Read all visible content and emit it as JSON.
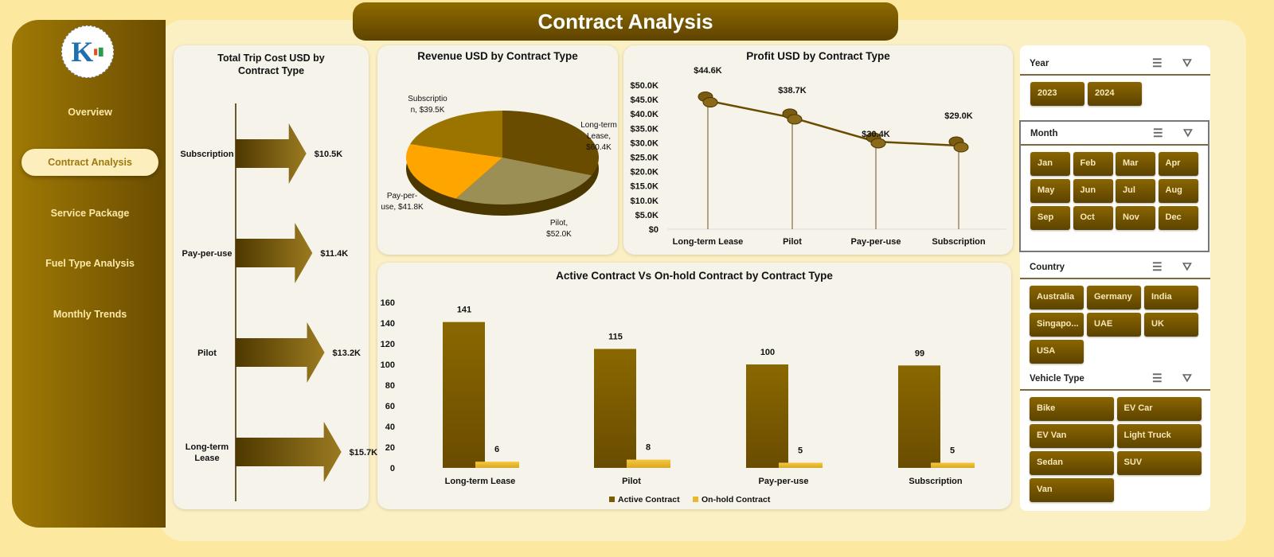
{
  "header": {
    "title": "Contract Analysis"
  },
  "sidebar": {
    "logo_text": "K",
    "items": [
      {
        "label": "Overview"
      },
      {
        "label": "Contract Analysis",
        "active": true
      },
      {
        "label": "Service Package"
      },
      {
        "label": "Fuel Type Analysis"
      },
      {
        "label": "Monthly Trends"
      }
    ]
  },
  "colors": {
    "dark_brown": "#6a4c00",
    "gold": "#9b7400",
    "khaki": "#9b8f55",
    "orange": "#ffa500",
    "onhold": "#e8b830"
  },
  "chart_data": [
    {
      "id": "trip-cost",
      "type": "bar",
      "orientation": "horizontal",
      "mark": "arrow",
      "title": "Total Trip Cost USD by Contract Type",
      "categories": [
        "Subscription",
        "Pay-per-use",
        "Pilot",
        "Long-term Lease"
      ],
      "values": [
        10.5,
        11.4,
        13.2,
        15.7
      ],
      "labels": [
        "$10.5K",
        "$11.4K",
        "$13.2K",
        "$15.7K"
      ],
      "unit": "K USD"
    },
    {
      "id": "revenue",
      "type": "pie",
      "title": "Revenue USD by Contract Type",
      "categories": [
        "Long-term Lease",
        "Pilot",
        "Pay-per-use",
        "Subscription"
      ],
      "values": [
        60.4,
        52.0,
        41.8,
        39.5
      ],
      "labels": [
        "Long-term Lease, $60.4K",
        "Pilot, $52.0K",
        "Pay-per-use, $41.8K",
        "Subscriptio n, $39.5K"
      ],
      "colors": [
        "#6a4c00",
        "#9b8f55",
        "#ffa500",
        "#9b7400"
      ]
    },
    {
      "id": "profit",
      "type": "line",
      "title": "Profit USD by Contract Type",
      "categories": [
        "Long-term Lease",
        "Pilot",
        "Pay-per-use",
        "Subscription"
      ],
      "values": [
        44.6,
        38.7,
        30.4,
        29.0
      ],
      "labels": [
        "$44.6K",
        "$38.7K",
        "$30.4K",
        "$29.0K"
      ],
      "ylim": [
        0,
        50
      ],
      "yticks": [
        "$0",
        "$5.0K",
        "$10.0K",
        "$15.0K",
        "$20.0K",
        "$25.0K",
        "$30.0K",
        "$35.0K",
        "$40.0K",
        "$45.0K",
        "$50.0K"
      ]
    },
    {
      "id": "contracts",
      "type": "bar",
      "title": "Active Contract Vs On-hold Contract by Contract Type",
      "categories": [
        "Long-term Lease",
        "Pilot",
        "Pay-per-use",
        "Subscription"
      ],
      "series": [
        {
          "name": "Active Contract",
          "values": [
            141,
            115,
            100,
            99
          ],
          "color": "#7a5c00"
        },
        {
          "name": "On-hold Contract",
          "values": [
            6,
            8,
            5,
            5
          ],
          "color": "#e8b830"
        }
      ],
      "ylim": [
        0,
        160
      ],
      "yticks": [
        "0",
        "20",
        "40",
        "60",
        "80",
        "100",
        "120",
        "140",
        "160"
      ],
      "legend": "bottom"
    }
  ],
  "slicers": [
    {
      "title": "Year",
      "items": [
        "2023",
        "2024"
      ]
    },
    {
      "title": "Month",
      "items": [
        "Jan",
        "Feb",
        "Mar",
        "Apr",
        "May",
        "Jun",
        "Jul",
        "Aug",
        "Sep",
        "Oct",
        "Nov",
        "Dec"
      ]
    },
    {
      "title": "Country",
      "items": [
        "Australia",
        "Germany",
        "India",
        "Singapo...",
        "UAE",
        "UK",
        "USA"
      ]
    },
    {
      "title": "Vehicle Type",
      "items": [
        "Bike",
        "EV Car",
        "EV Van",
        "Light Truck",
        "Sedan",
        "SUV",
        "Van"
      ]
    }
  ]
}
